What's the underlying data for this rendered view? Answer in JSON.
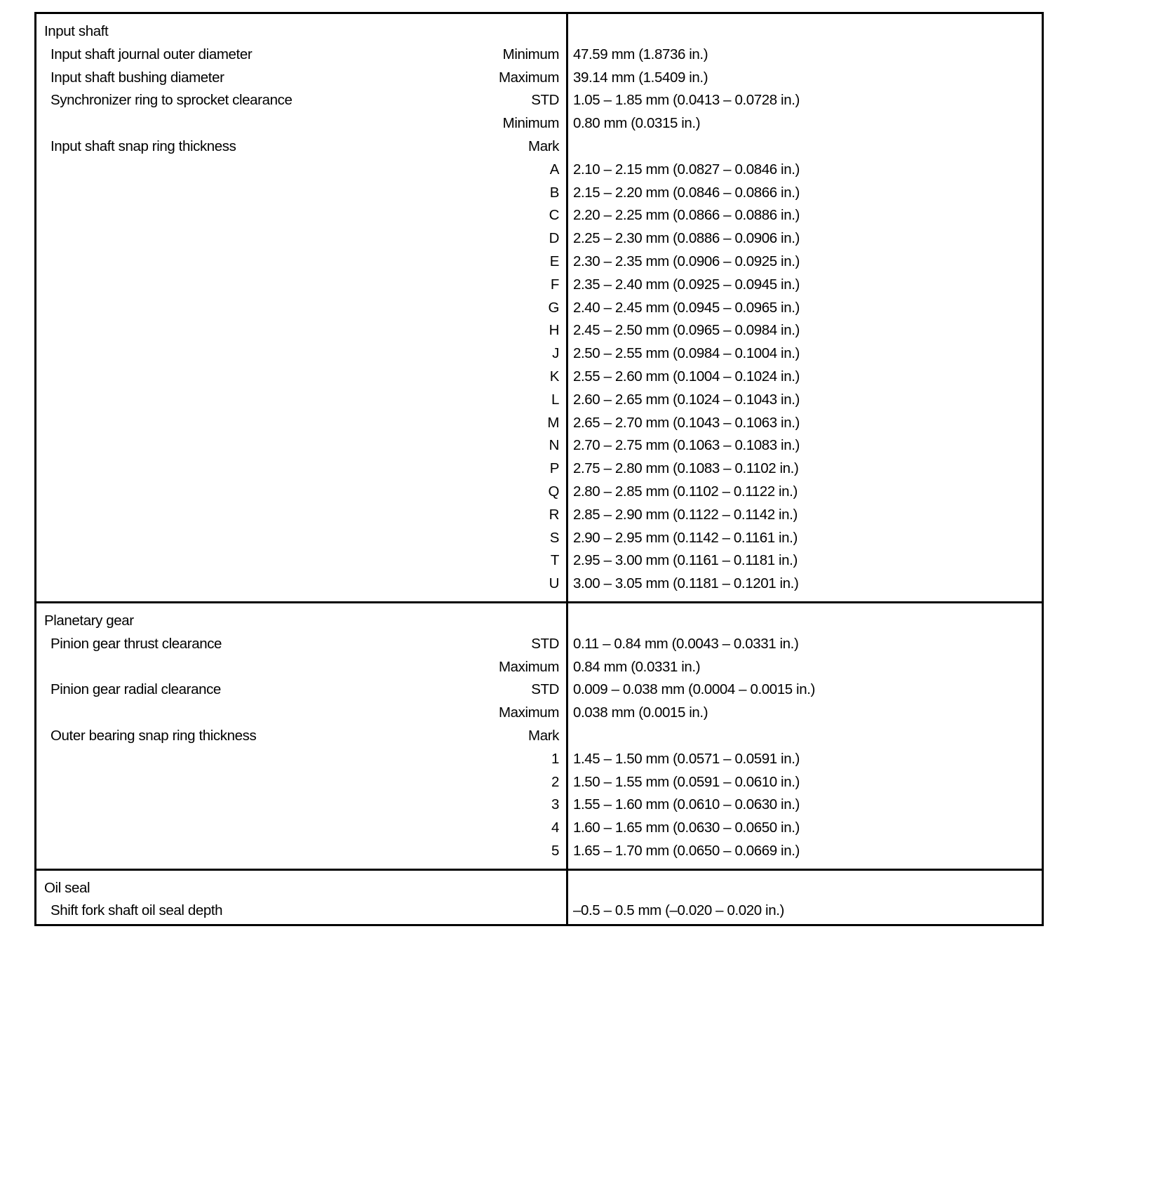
{
  "sections": [
    {
      "title": "Input shaft",
      "rows": [
        {
          "label": "Input shaft journal outer diameter",
          "qualifier": "Minimum",
          "value": "47.59 mm (1.8736 in.)"
        },
        {
          "label": "Input shaft bushing diameter",
          "qualifier": "Maximum",
          "value": "39.14 mm (1.5409 in.)"
        },
        {
          "label": "Synchronizer ring to sprocket clearance",
          "qualifier": "STD",
          "value": "1.05 – 1.85 mm (0.0413 – 0.0728 in.)"
        },
        {
          "label": "",
          "qualifier": "Minimum",
          "value": "0.80 mm (0.0315 in.)"
        },
        {
          "label": "Input shaft snap ring thickness",
          "qualifier": "Mark",
          "value": ""
        },
        {
          "label": "",
          "qualifier": "A",
          "value": "2.10 – 2.15 mm (0.0827 – 0.0846 in.)"
        },
        {
          "label": "",
          "qualifier": "B",
          "value": "2.15 – 2.20 mm (0.0846 – 0.0866 in.)"
        },
        {
          "label": "",
          "qualifier": "C",
          "value": "2.20 – 2.25 mm (0.0866 – 0.0886 in.)"
        },
        {
          "label": "",
          "qualifier": "D",
          "value": "2.25 – 2.30 mm (0.0886 – 0.0906 in.)"
        },
        {
          "label": "",
          "qualifier": "E",
          "value": "2.30 – 2.35 mm (0.0906 – 0.0925 in.)"
        },
        {
          "label": "",
          "qualifier": "F",
          "value": "2.35 – 2.40 mm (0.0925 – 0.0945 in.)"
        },
        {
          "label": "",
          "qualifier": "G",
          "value": "2.40 – 2.45 mm (0.0945 – 0.0965 in.)"
        },
        {
          "label": "",
          "qualifier": "H",
          "value": "2.45 – 2.50 mm (0.0965 – 0.0984 in.)"
        },
        {
          "label": "",
          "qualifier": "J",
          "value": "2.50 – 2.55 mm (0.0984 – 0.1004 in.)"
        },
        {
          "label": "",
          "qualifier": "K",
          "value": "2.55 – 2.60 mm (0.1004 – 0.1024 in.)"
        },
        {
          "label": "",
          "qualifier": "L",
          "value": "2.60 – 2.65 mm (0.1024 – 0.1043 in.)"
        },
        {
          "label": "",
          "qualifier": "M",
          "value": "2.65 – 2.70 mm (0.1043 – 0.1063 in.)"
        },
        {
          "label": "",
          "qualifier": "N",
          "value": "2.70 – 2.75 mm (0.1063 – 0.1083 in.)"
        },
        {
          "label": "",
          "qualifier": "P",
          "value": "2.75 – 2.80 mm (0.1083 – 0.1102 in.)"
        },
        {
          "label": "",
          "qualifier": "Q",
          "value": "2.80 – 2.85 mm (0.1102 – 0.1122 in.)"
        },
        {
          "label": "",
          "qualifier": "R",
          "value": "2.85 – 2.90 mm (0.1122 – 0.1142 in.)"
        },
        {
          "label": "",
          "qualifier": "S",
          "value": "2.90 – 2.95 mm (0.1142 – 0.1161 in.)"
        },
        {
          "label": "",
          "qualifier": "T",
          "value": "2.95 – 3.00 mm (0.1161 – 0.1181 in.)"
        },
        {
          "label": "",
          "qualifier": "U",
          "value": "3.00 – 3.05 mm (0.1181 – 0.1201 in.)"
        }
      ]
    },
    {
      "title": "Planetary gear",
      "rows": [
        {
          "label": "Pinion gear thrust clearance",
          "qualifier": "STD",
          "value": "0.11 – 0.84 mm (0.0043 – 0.0331 in.)"
        },
        {
          "label": "",
          "qualifier": "Maximum",
          "value": "0.84 mm (0.0331 in.)"
        },
        {
          "label": "Pinion gear radial clearance",
          "qualifier": "STD",
          "value": "0.009 – 0.038 mm (0.0004 – 0.0015 in.)"
        },
        {
          "label": "",
          "qualifier": "Maximum",
          "value": "0.038 mm (0.0015 in.)"
        },
        {
          "label": "Outer bearing snap ring thickness",
          "qualifier": "Mark",
          "value": ""
        },
        {
          "label": "",
          "qualifier": "1",
          "value": "1.45 – 1.50 mm (0.0571 – 0.0591 in.)"
        },
        {
          "label": "",
          "qualifier": "2",
          "value": "1.50 – 1.55 mm (0.0591 – 0.0610 in.)"
        },
        {
          "label": "",
          "qualifier": "3",
          "value": "1.55 – 1.60 mm (0.0610 – 0.0630 in.)"
        },
        {
          "label": "",
          "qualifier": "4",
          "value": "1.60 – 1.65 mm (0.0630 – 0.0650 in.)"
        },
        {
          "label": "",
          "qualifier": "5",
          "value": "1.65 – 1.70 mm (0.0650 – 0.0669 in.)"
        }
      ]
    },
    {
      "title": "Oil seal",
      "rows": [
        {
          "label": "Shift fork shaft oil seal depth",
          "qualifier": "",
          "value": "–0.5 – 0.5 mm (–0.020 – 0.020 in.)"
        }
      ]
    }
  ]
}
